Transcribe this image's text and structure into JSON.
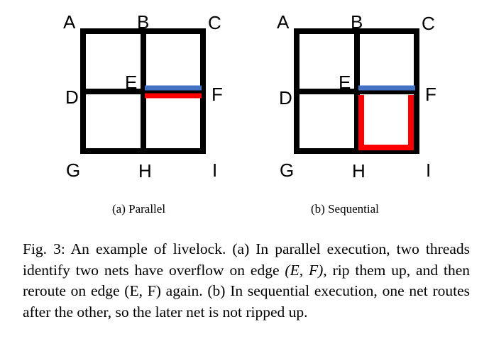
{
  "panels": [
    {
      "subcaption": "(a) Parallel",
      "labels": {
        "A": "A",
        "B": "B",
        "C": "C",
        "D": "D",
        "E": "E",
        "F": "F",
        "G": "G",
        "H": "H",
        "I": "I"
      },
      "routes": [
        "E-F",
        "E-F"
      ]
    },
    {
      "subcaption": "(b) Sequential",
      "labels": {
        "A": "A",
        "B": "B",
        "C": "C",
        "D": "D",
        "E": "E",
        "F": "F",
        "G": "G",
        "H": "H",
        "I": "I"
      },
      "routes": [
        "E-F",
        "E-H-I-F"
      ]
    }
  ],
  "colors": {
    "grid": "#000000",
    "net1": "#4472c4",
    "net2": "#ff0000"
  },
  "caption": {
    "lead": "Fig. 3: An example of livelock. (a) In parallel execution, two threads identify two nets have overflow on edge ",
    "math": "(E, F)",
    "tail": ", rip them up, and then reroute on edge (E, F) again. (b) In sequential execution, one net routes after the other, so the later net is not ripped up."
  }
}
